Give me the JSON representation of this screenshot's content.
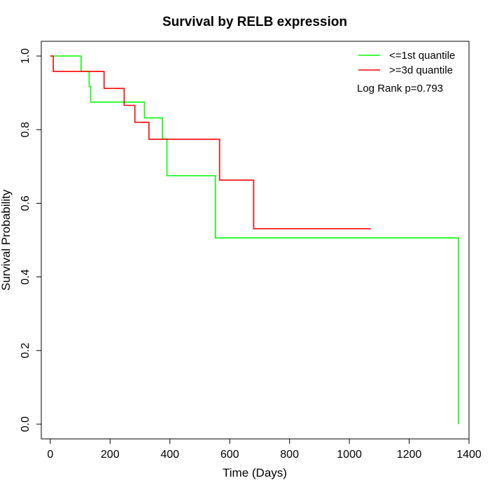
{
  "chart_data": {
    "type": "line",
    "subtype": "kaplan-meier-step",
    "title": "Survival by RELB expression",
    "xlabel": "Time (Days)",
    "ylabel": "Survival Probability",
    "xlim": [
      -30,
      1400
    ],
    "ylim": [
      -0.04,
      1.04
    ],
    "x_ticks": [
      0,
      200,
      400,
      600,
      800,
      1000,
      1200,
      1400
    ],
    "y_ticks": [
      0.0,
      0.2,
      0.4,
      0.6,
      0.8,
      1.0
    ],
    "x_tick_labels": [
      "0",
      "200",
      "400",
      "600",
      "800",
      "1000",
      "1200",
      "1400"
    ],
    "y_tick_labels": [
      "0.0",
      "0.2",
      "0.4",
      "0.6",
      "0.8",
      "1.0"
    ],
    "grid": false,
    "legend_position": "top-right",
    "annotation": "Log Rank p=0.793",
    "series": [
      {
        "name": "<=1st quantile",
        "color": "#00ff00",
        "points": [
          [
            0,
            1.0
          ],
          [
            103,
            1.0
          ],
          [
            103,
            0.958
          ],
          [
            130,
            0.958
          ],
          [
            130,
            0.917
          ],
          [
            135,
            0.917
          ],
          [
            135,
            0.875
          ],
          [
            315,
            0.875
          ],
          [
            315,
            0.832
          ],
          [
            375,
            0.832
          ],
          [
            375,
            0.775
          ],
          [
            390,
            0.775
          ],
          [
            390,
            0.675
          ],
          [
            552,
            0.675
          ],
          [
            552,
            0.506
          ],
          [
            1365,
            0.506
          ],
          [
            1365,
            0.0
          ]
        ]
      },
      {
        "name": ">=3d quantile",
        "color": "#ff0000",
        "points": [
          [
            0,
            1.0
          ],
          [
            10,
            1.0
          ],
          [
            10,
            0.958
          ],
          [
            180,
            0.958
          ],
          [
            180,
            0.912
          ],
          [
            247,
            0.912
          ],
          [
            247,
            0.866
          ],
          [
            283,
            0.866
          ],
          [
            283,
            0.82
          ],
          [
            330,
            0.82
          ],
          [
            330,
            0.774
          ],
          [
            566,
            0.774
          ],
          [
            566,
            0.663
          ],
          [
            680,
            0.663
          ],
          [
            680,
            0.531
          ],
          [
            1072,
            0.531
          ]
        ]
      }
    ]
  }
}
